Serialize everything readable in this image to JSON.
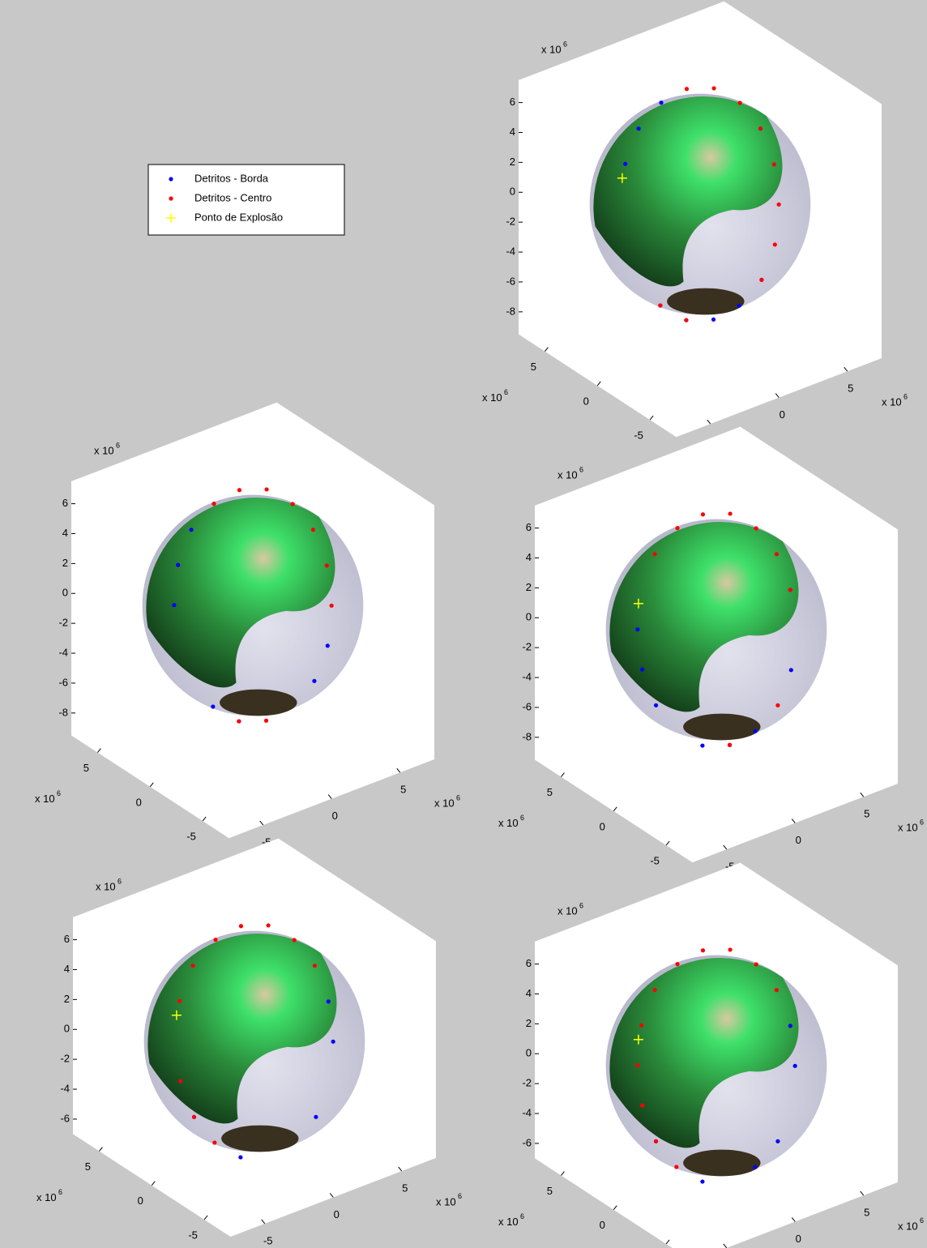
{
  "chart_data": [
    {
      "type": "scatter3d",
      "xlim": [
        -7.5,
        7.5
      ],
      "ylim": [
        -7.5,
        7.5
      ],
      "zlim": [
        -9.5,
        7.5
      ],
      "xticks": [
        -5,
        0,
        5
      ],
      "yticks": [
        -5,
        0,
        5
      ],
      "zticks": [
        6,
        4,
        2,
        0,
        -2,
        -4,
        -6,
        -8
      ],
      "multiplier": "x 10",
      "multiplier_power": "6",
      "series": [
        {
          "name": "Detritos - Borda",
          "color": "#0000ff",
          "marker": "dot",
          "x": [
            -2.7,
            -1.5,
            0.0,
            4.1,
            1.5,
            0.0,
            -1.4,
            -2.7,
            -3.6
          ],
          "y": [
            3.6,
            3.9,
            3.7,
            -0.4,
            -3.9,
            -3.7,
            -3.1,
            -2.2,
            -0.9
          ],
          "z": [
            2.0,
            3.8,
            5.1,
            3.8,
            -3.8,
            -5.1,
            -5.8,
            -5.8,
            -5.1
          ]
        },
        {
          "name": "Detritos - Centro",
          "color": "#ff0000",
          "marker": "dot",
          "x": [
            1.4,
            2.7,
            3.6,
            4.1,
            4.1,
            3.6,
            2.7,
            1.5,
            -2.7,
            -3.6
          ],
          "y": [
            3.1,
            2.2,
            0.9,
            -0.4,
            -1.7,
            -2.8,
            -3.6,
            -3.9,
            -2.2,
            -0.9
          ],
          "z": [
            5.8,
            5.8,
            5.1,
            3.8,
            2.0,
            0,
            -2.0,
            -3.8,
            -5.8,
            -5.1
          ]
        },
        {
          "name": "Ponto de Explosão",
          "color": "#ffff00",
          "marker": "plus",
          "x": [
            -3.0
          ],
          "y": [
            3.5
          ],
          "z": [
            1.2
          ]
        }
      ]
    },
    {
      "type": "scatter3d",
      "xlim": [
        -7.5,
        7.5
      ],
      "ylim": [
        -7.5,
        7.5
      ],
      "zlim": [
        -9.5,
        7.5
      ],
      "xticks": [
        -5,
        0,
        5
      ],
      "yticks": [
        -5,
        0,
        5
      ],
      "zticks": [
        6,
        4,
        2,
        0,
        -2,
        -4,
        -6,
        -8
      ],
      "multiplier": "x 10",
      "multiplier_power": "6",
      "series": [
        {
          "color": "#0000ff",
          "marker": "dot",
          "x": [
            -3.6,
            -2.7,
            -1.5,
            0.0,
            2.7,
            1.5,
            -2.7,
            -3.6
          ],
          "y": [
            2.8,
            3.6,
            3.9,
            3.7,
            -3.6,
            -3.9,
            -2.2,
            -0.9
          ],
          "z": [
            0,
            2.0,
            3.8,
            5.1,
            -2.0,
            -3.8,
            -5.8,
            -5.1
          ]
        },
        {
          "color": "#ff0000",
          "marker": "dot",
          "x": [
            0.0,
            1.4,
            2.7,
            3.6,
            4.1,
            4.1,
            3.6,
            -1.4,
            -2.7
          ],
          "y": [
            3.7,
            3.1,
            2.2,
            0.9,
            -0.4,
            -1.7,
            -2.8,
            -3.1,
            -2.2
          ],
          "z": [
            5.1,
            5.8,
            5.8,
            5.1,
            3.8,
            2.0,
            0,
            -5.8,
            -5.8
          ]
        }
      ]
    },
    {
      "type": "scatter3d",
      "xlim": [
        -7.5,
        7.5
      ],
      "ylim": [
        -7.5,
        7.5
      ],
      "zlim": [
        -9.5,
        7.5
      ],
      "xticks": [
        -5,
        0,
        5
      ],
      "yticks": [
        -5,
        0,
        5
      ],
      "zticks": [
        6,
        4,
        2,
        0,
        -2,
        -4,
        -6,
        -8
      ],
      "multiplier": "x 10",
      "multiplier_power": "6",
      "series": [
        {
          "color": "#0000ff",
          "marker": "dot",
          "x": [
            -3.6,
            -4.1,
            -4.1,
            4.1,
            2.7,
            0.0,
            -1.4,
            -2.7
          ],
          "y": [
            2.8,
            1.7,
            0.4,
            -1.7,
            -3.6,
            -3.7,
            -3.1,
            -2.2
          ],
          "z": [
            0,
            -2.0,
            -3.8,
            2.0,
            -2.0,
            -5.1,
            -5.8,
            -5.8
          ]
        },
        {
          "color": "#ff0000",
          "marker": "dot",
          "x": [
            -1.5,
            0.0,
            1.4,
            2.7,
            3.6,
            4.1,
            4.1,
            1.5,
            -1.4
          ],
          "y": [
            3.9,
            3.7,
            3.1,
            2.2,
            0.9,
            -0.4,
            -1.7,
            -3.9,
            -3.1
          ],
          "z": [
            3.8,
            5.1,
            5.8,
            5.8,
            5.1,
            3.8,
            2.0,
            -3.8,
            -5.8
          ]
        },
        {
          "color": "#ffff00",
          "marker": "plus",
          "x": [
            -3.0
          ],
          "y": [
            3.5
          ],
          "z": [
            1.2
          ]
        }
      ]
    },
    {
      "type": "scatter3d",
      "xlim": [
        -7.5,
        7.5
      ],
      "ylim": [
        -7.5,
        7.5
      ],
      "zlim": [
        -7,
        7.5
      ],
      "xticks": [
        -5,
        0,
        5
      ],
      "yticks": [
        -5,
        0,
        5
      ],
      "zticks": [
        6,
        4,
        2,
        0,
        -2,
        -4,
        -6
      ],
      "multiplier": "x 10",
      "multiplier_power": "6",
      "series": [
        {
          "color": "#0000ff",
          "marker": "dot",
          "x": [
            -4.1,
            -4.1,
            -2.7,
            1.5,
            3.6,
            4.1
          ],
          "y": [
            1.7,
            0.4,
            -2.2,
            -3.9,
            -2.8,
            -1.7
          ],
          "z": [
            -2.0,
            -3.8,
            -5.8,
            -3.8,
            0,
            2.0
          ]
        },
        {
          "color": "#ff0000",
          "marker": "dot",
          "x": [
            -2.7,
            -1.5,
            0.0,
            1.4,
            2.7,
            3.6,
            4.1,
            -3.6,
            -4.1,
            -4.1
          ],
          "y": [
            3.6,
            3.9,
            3.7,
            3.1,
            2.2,
            0.9,
            -0.4,
            -0.9,
            0.4,
            1.7
          ],
          "z": [
            2.0,
            3.8,
            5.1,
            5.8,
            5.8,
            5.1,
            3.8,
            -5.1,
            -3.8,
            -2.0
          ]
        },
        {
          "color": "#ffff00",
          "marker": "plus",
          "x": [
            -3.0
          ],
          "y": [
            3.5
          ],
          "z": [
            1.2
          ]
        }
      ]
    },
    {
      "type": "scatter3d",
      "xlim": [
        -7.5,
        7.5
      ],
      "ylim": [
        -7.5,
        7.5
      ],
      "zlim": [
        -7,
        7.5
      ],
      "xticks": [
        -5,
        0,
        5
      ],
      "yticks": [
        -5,
        0,
        5
      ],
      "zticks": [
        6,
        4,
        2,
        0,
        -2,
        -4,
        -6
      ],
      "multiplier": "x 10",
      "multiplier_power": "6",
      "series": [
        {
          "color": "#0000ff",
          "marker": "dot",
          "x": [
            -4.1,
            -2.7,
            0.0,
            1.5,
            3.6,
            4.1
          ],
          "y": [
            0.4,
            -2.2,
            -3.7,
            -3.9,
            -2.8,
            -1.7
          ],
          "z": [
            -3.8,
            -5.8,
            -5.1,
            -3.8,
            0,
            2.0
          ]
        },
        {
          "color": "#ff0000",
          "marker": "dot",
          "x": [
            -3.6,
            -2.7,
            -1.5,
            0.0,
            1.4,
            2.7,
            3.6,
            4.1,
            -4.1,
            -4.1,
            -3.6
          ],
          "y": [
            2.8,
            3.6,
            3.9,
            3.7,
            3.1,
            2.2,
            0.9,
            -0.4,
            1.7,
            0.4,
            -0.9
          ],
          "z": [
            0,
            2.0,
            3.8,
            5.1,
            5.8,
            5.8,
            5.1,
            3.8,
            -2.0,
            -3.8,
            -5.1
          ]
        },
        {
          "color": "#ffff00",
          "marker": "plus",
          "x": [
            -3.0
          ],
          "y": [
            3.5
          ],
          "z": [
            1.2
          ]
        }
      ]
    }
  ]
}
